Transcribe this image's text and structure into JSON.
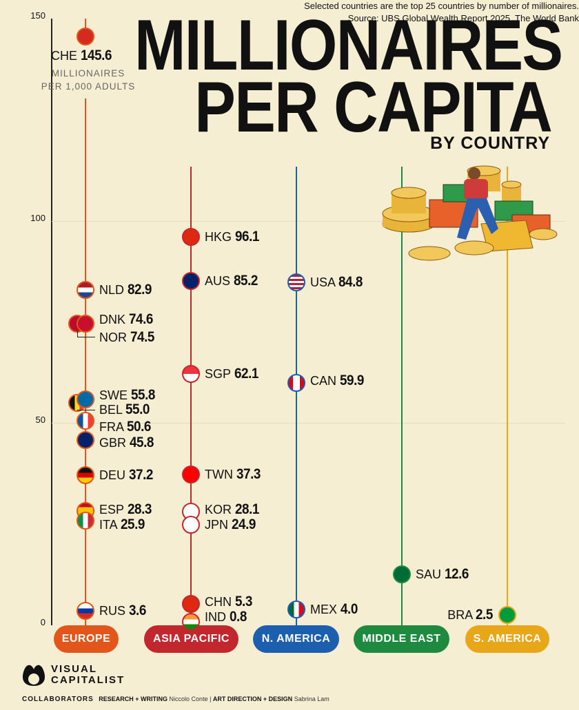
{
  "chart_data": {
    "type": "scatter",
    "title": "MILLIONAIRES PER CAPITA",
    "subtitle": "BY COUNTRY",
    "ylabel": "MILLIONAIRES PER 1,000 ADULTS",
    "ylim": [
      0,
      150
    ],
    "yticks": [
      "0",
      "50",
      "100",
      "150"
    ],
    "regions": [
      {
        "name": "EUROPE",
        "color": "#e2561c",
        "points": [
          {
            "code": "CHE",
            "value": "145.6"
          },
          {
            "code": "NLD",
            "value": "82.9"
          },
          {
            "code": "DNK",
            "value": "74.6"
          },
          {
            "code": "NOR",
            "value": "74.5"
          },
          {
            "code": "SWE",
            "value": "55.8"
          },
          {
            "code": "BEL",
            "value": "55.0"
          },
          {
            "code": "FRA",
            "value": "50.6"
          },
          {
            "code": "GBR",
            "value": "45.8"
          },
          {
            "code": "DEU",
            "value": "37.2"
          },
          {
            "code": "ESP",
            "value": "28.3"
          },
          {
            "code": "ITA",
            "value": "25.9"
          },
          {
            "code": "RUS",
            "value": "3.6"
          }
        ]
      },
      {
        "name": "ASIA PACIFIC",
        "color": "#c1272d",
        "points": [
          {
            "code": "HKG",
            "value": "96.1"
          },
          {
            "code": "AUS",
            "value": "85.2"
          },
          {
            "code": "SGP",
            "value": "62.1"
          },
          {
            "code": "TWN",
            "value": "37.3"
          },
          {
            "code": "KOR",
            "value": "28.1"
          },
          {
            "code": "JPN",
            "value": "24.9"
          },
          {
            "code": "CHN",
            "value": "5.3"
          },
          {
            "code": "IND",
            "value": "0.8"
          }
        ]
      },
      {
        "name": "N. AMERICA",
        "color": "#1b5fae",
        "points": [
          {
            "code": "USA",
            "value": "84.8"
          },
          {
            "code": "CAN",
            "value": "59.9"
          },
          {
            "code": "MEX",
            "value": "4.0"
          }
        ]
      },
      {
        "name": "MIDDLE EAST",
        "color": "#1d8a40",
        "points": [
          {
            "code": "SAU",
            "value": "12.6"
          }
        ]
      },
      {
        "name": "S. AMERICA",
        "color": "#e7a718",
        "points": [
          {
            "code": "BRA",
            "value": "2.5"
          }
        ]
      }
    ]
  },
  "header": {
    "line1": "MILLIONAIRES",
    "line2": "PER CAPITA",
    "line3": "BY COUNTRY"
  },
  "footer": {
    "logo_line1": "VISUAL",
    "logo_line2": "CAPITALIST",
    "note": "Selected countries are the top 25 countries by number of millionaires.",
    "source": "Source: UBS Global Wealth Report 2025, The World Bank",
    "collaborators": "COLLABORATORS",
    "research_label": "RESEARCH + WRITING",
    "research_name": "Niccolo Conte",
    "design_label": "ART DIRECTION + DESIGN",
    "design_name": "Sabrina Lam"
  }
}
